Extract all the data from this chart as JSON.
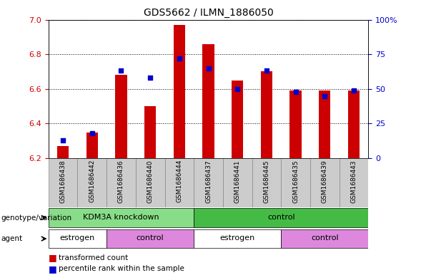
{
  "title": "GDS5662 / ILMN_1886050",
  "samples": [
    "GSM1686438",
    "GSM1686442",
    "GSM1686436",
    "GSM1686440",
    "GSM1686444",
    "GSM1686437",
    "GSM1686441",
    "GSM1686445",
    "GSM1686435",
    "GSM1686439",
    "GSM1686443"
  ],
  "transformed_count": [
    6.27,
    6.35,
    6.68,
    6.5,
    6.97,
    6.86,
    6.65,
    6.7,
    6.59,
    6.59,
    6.59
  ],
  "percentile_rank": [
    13,
    18,
    63,
    58,
    72,
    65,
    50,
    63,
    48,
    45,
    49
  ],
  "bar_bottom": 6.2,
  "ylim_left": [
    6.2,
    7.0
  ],
  "ylim_right": [
    0,
    100
  ],
  "yticks_left": [
    6.2,
    6.4,
    6.6,
    6.8,
    7.0
  ],
  "yticks_right": [
    0,
    25,
    50,
    75,
    100
  ],
  "yticklabels_right": [
    "0",
    "25",
    "50",
    "75",
    "100%"
  ],
  "bar_color": "#cc0000",
  "dot_color": "#0000cc",
  "groups_genotype": [
    {
      "label": "KDM3A knockdown",
      "start": 0,
      "end": 5,
      "color": "#88dd88"
    },
    {
      "label": "control",
      "start": 5,
      "end": 11,
      "color": "#44bb44"
    }
  ],
  "groups_agent": [
    {
      "label": "estrogen",
      "start": 0,
      "end": 2,
      "color": "#ffffff"
    },
    {
      "label": "control",
      "start": 2,
      "end": 5,
      "color": "#dd88dd"
    },
    {
      "label": "estrogen",
      "start": 5,
      "end": 8,
      "color": "#ffffff"
    },
    {
      "label": "control",
      "start": 8,
      "end": 11,
      "color": "#dd88dd"
    }
  ],
  "legend_items": [
    {
      "label": "transformed count",
      "color": "#cc0000"
    },
    {
      "label": "percentile rank within the sample",
      "color": "#0000cc"
    }
  ],
  "left_label_genotype": "genotype/variation",
  "left_label_agent": "agent",
  "bar_width": 0.4
}
